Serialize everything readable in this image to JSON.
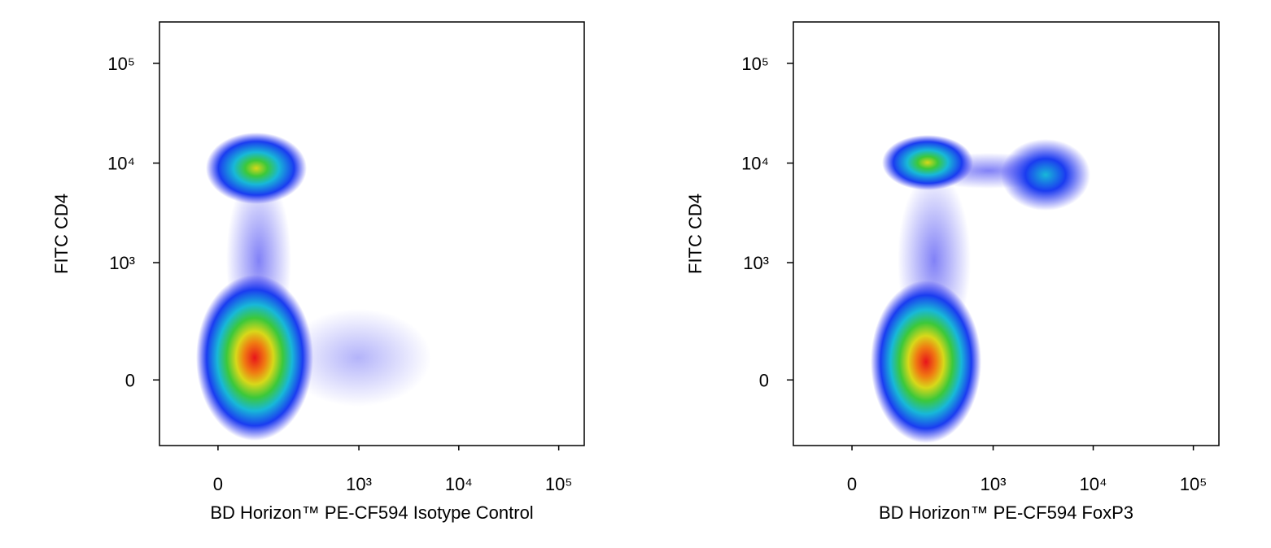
{
  "chart_data": [
    {
      "type": "scatter",
      "x_label": "BD Horizon™ PE-CF594 Isotype Control",
      "y_label": "FITC CD4",
      "xscale": "logicle",
      "yscale": "logicle",
      "xlim": [
        -140,
        180000
      ],
      "ylim": [
        -290,
        260000
      ],
      "xticks": [
        0,
        {
          "value": 1000,
          "label": "10³"
        },
        {
          "value": 10000,
          "label": "10⁴"
        },
        {
          "value": 100000,
          "label": "10⁵"
        }
      ],
      "yticks": [
        0,
        {
          "value": 1000,
          "label": "10³"
        },
        {
          "value": 10000,
          "label": "10⁴"
        },
        {
          "value": 100000,
          "label": "10⁵"
        }
      ]
    },
    {
      "type": "scatter",
      "x_label": "BD Horizon™ PE-CF594 FoxP3",
      "y_label": "FITC CD4",
      "xscale": "logicle",
      "yscale": "logicle",
      "xlim": [
        -140,
        180000
      ],
      "ylim": [
        -290,
        260000
      ],
      "xticks": [
        0,
        {
          "value": 1000,
          "label": "10³"
        },
        {
          "value": 10000,
          "label": "10⁴"
        },
        {
          "value": 100000,
          "label": "10⁵"
        }
      ],
      "yticks": [
        0,
        {
          "value": 1000,
          "label": "10³"
        },
        {
          "value": 10000,
          "label": "10⁴"
        },
        {
          "value": 100000,
          "label": "10⁵"
        }
      ]
    }
  ]
}
